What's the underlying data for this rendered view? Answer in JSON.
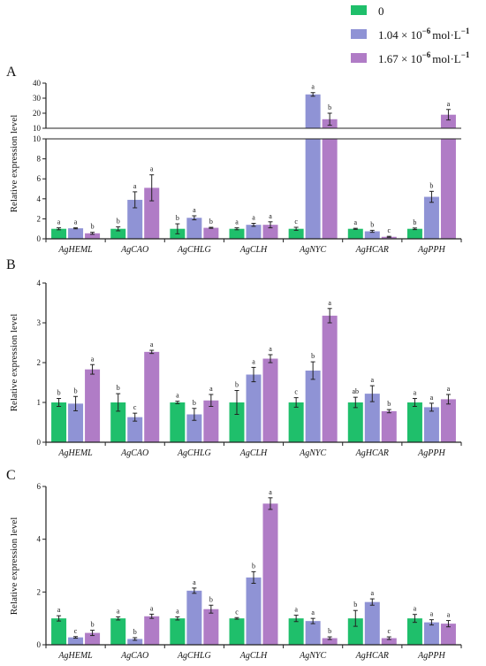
{
  "chart_data": {
    "type": "bar",
    "legend": {
      "position": "top-right",
      "entries": [
        {
          "label_base": "0",
          "label_exp": "",
          "label_suffix": "",
          "color": "#1fbf6b"
        },
        {
          "label_base": "1.04 × 10",
          "label_exp": "−6",
          "label_suffix": "mol·L",
          "label_suffix_exp": "−1",
          "color": "#8f93d5"
        },
        {
          "label_base": "1.67 × 10",
          "label_exp": "−6",
          "label_suffix": "mol·L",
          "label_suffix_exp": "−1",
          "color": "#b07cc6"
        }
      ]
    },
    "categories": [
      "AgHEML",
      "AgCAO",
      "AgCHLG",
      "AgCLH",
      "AgNYC",
      "AgHCAR",
      "AgPPH"
    ],
    "panels": [
      {
        "label": "A",
        "ylabel": "Relative expression level",
        "broken_axis": true,
        "lower_ticks": [
          "0",
          "2",
          "4",
          "6",
          "8",
          "10"
        ],
        "upper_ticks": [
          "10",
          "20",
          "30",
          "40"
        ],
        "series": [
          {
            "values": [
              1.0,
              1.0,
              1.0,
              1.0,
              1.0,
              1.0,
              1.0
            ],
            "errors": [
              0.1,
              0.2,
              0.5,
              0.1,
              0.15,
              0.05,
              0.08
            ],
            "letters": [
              "a",
              "b",
              "b",
              "a",
              "c",
              "a",
              "b"
            ]
          },
          {
            "values": [
              1.05,
              3.9,
              2.1,
              1.4,
              32.5,
              0.75,
              4.2
            ],
            "errors": [
              0.05,
              0.8,
              0.2,
              0.15,
              1.2,
              0.1,
              0.55
            ],
            "letters": [
              "a",
              "a",
              "a",
              "a",
              "a",
              "b",
              "b"
            ]
          },
          {
            "values": [
              0.55,
              5.1,
              1.1,
              1.4,
              16.0,
              0.2,
              19.0
            ],
            "errors": [
              0.1,
              1.3,
              0.05,
              0.3,
              4.0,
              0.05,
              3.5
            ],
            "letters": [
              "b",
              "a",
              "b",
              "a",
              "b",
              "c",
              "a"
            ]
          }
        ]
      },
      {
        "label": "B",
        "ylabel": "Relative expression level",
        "ylim": [
          0,
          4
        ],
        "ticks": [
          "0",
          "1",
          "2",
          "3",
          "4"
        ],
        "series": [
          {
            "values": [
              1.0,
              1.0,
              1.0,
              1.0,
              1.0,
              1.0,
              1.0
            ],
            "errors": [
              0.1,
              0.22,
              0.03,
              0.3,
              0.12,
              0.13,
              0.1
            ],
            "letters": [
              "b",
              "b",
              "a",
              "b",
              "c",
              "ab",
              "a"
            ]
          },
          {
            "values": [
              0.97,
              0.63,
              0.7,
              1.7,
              1.8,
              1.22,
              0.88
            ],
            "errors": [
              0.18,
              0.1,
              0.15,
              0.18,
              0.22,
              0.2,
              0.1
            ],
            "letters": [
              "b",
              "c",
              "b",
              "a",
              "b",
              "a",
              "a"
            ]
          },
          {
            "values": [
              1.83,
              2.27,
              1.05,
              2.1,
              3.18,
              0.78,
              1.08
            ],
            "errors": [
              0.12,
              0.04,
              0.15,
              0.1,
              0.18,
              0.04,
              0.12
            ],
            "letters": [
              "a",
              "a",
              "a",
              "a",
              "a",
              "b",
              "a"
            ]
          }
        ]
      },
      {
        "label": "C",
        "ylabel": "Relative expression level",
        "ylim": [
          0,
          6
        ],
        "ticks": [
          "0",
          "2",
          "4",
          "6"
        ],
        "series": [
          {
            "values": [
              1.0,
              1.0,
              1.0,
              1.0,
              1.0,
              1.0,
              1.0
            ],
            "errors": [
              0.1,
              0.06,
              0.06,
              0.03,
              0.12,
              0.3,
              0.15
            ],
            "letters": [
              "a",
              "a",
              "a",
              "c",
              "a",
              "b",
              "a"
            ]
          },
          {
            "values": [
              0.28,
              0.22,
              2.05,
              2.55,
              0.9,
              1.62,
              0.85
            ],
            "errors": [
              0.03,
              0.05,
              0.1,
              0.22,
              0.1,
              0.12,
              0.1
            ],
            "letters": [
              "c",
              "b",
              "a",
              "b",
              "a",
              "a",
              "a"
            ]
          },
          {
            "values": [
              0.45,
              1.08,
              1.35,
              5.35,
              0.25,
              0.25,
              0.8
            ],
            "errors": [
              0.1,
              0.08,
              0.15,
              0.22,
              0.05,
              0.05,
              0.12
            ],
            "letters": [
              "b",
              "a",
              "b",
              "a",
              "b",
              "c",
              "a"
            ]
          }
        ]
      }
    ]
  }
}
